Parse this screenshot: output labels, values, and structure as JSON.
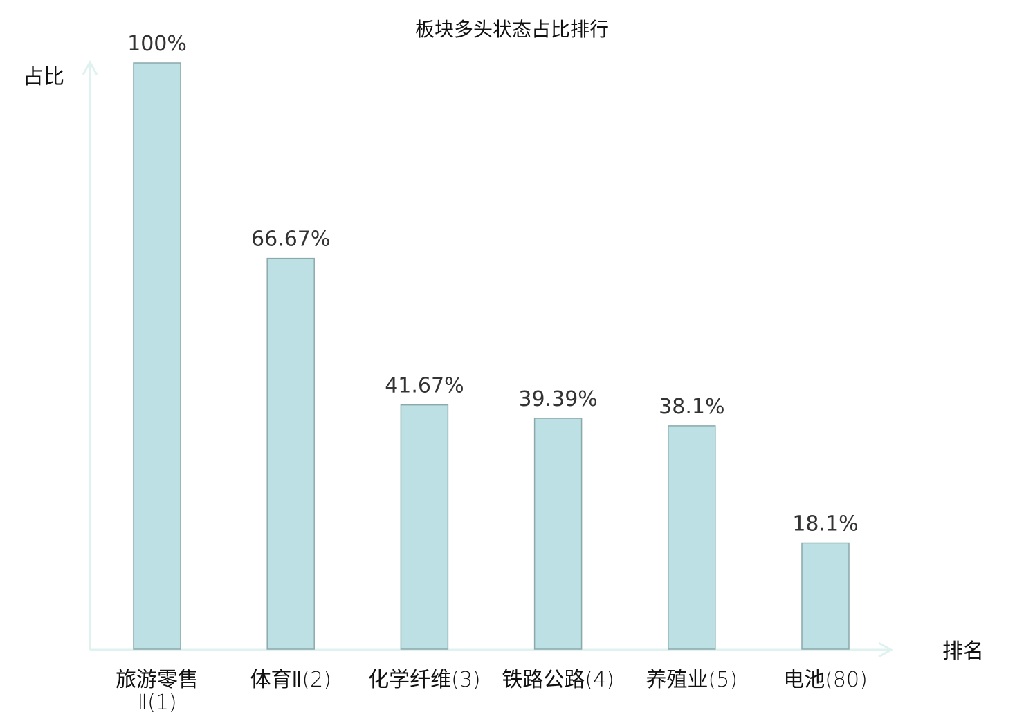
{
  "chart_data": {
    "type": "bar",
    "title": "板块多头状态占比排行",
    "xlabel": "排名",
    "ylabel": "占比",
    "ylim": [
      0,
      100
    ],
    "grid": false,
    "categories": [
      {
        "name": "旅游零售",
        "name2": "Ⅱ",
        "rank": "(1)",
        "highlight": false
      },
      {
        "name": "体育Ⅱ",
        "rank": "(2)",
        "highlight": false
      },
      {
        "name": "化学纤维",
        "rank": "(3)",
        "highlight": false
      },
      {
        "name": "铁路公路",
        "rank": "(4)",
        "highlight": false
      },
      {
        "name": "养殖业",
        "rank": "(5)",
        "highlight": false
      },
      {
        "name": "电池",
        "rank": "(80)",
        "highlight": true
      }
    ],
    "values": [
      100,
      66.67,
      41.67,
      39.39,
      38.1,
      18.1
    ],
    "value_labels": [
      "100%",
      "66.67%",
      "41.67%",
      "39.39%",
      "38.1%",
      "18.1%"
    ],
    "colors": {
      "bar": "#bce0e3",
      "bar_edge": "#8aa9ab",
      "axis": "#dff2f0",
      "highlight": "#ee1111",
      "text": "#111111"
    }
  }
}
